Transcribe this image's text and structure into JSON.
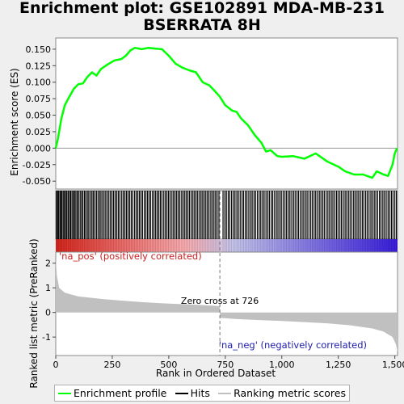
{
  "title_line1": "Enrichment plot: GSE102891 MDA-MB-231",
  "title_line2": "BSERRATA 8H",
  "chart_data": {
    "type": "line",
    "es_panel": {
      "ylabel": "Enrichment score (ES)",
      "ylim": [
        -0.062,
        0.167
      ],
      "yticks": [
        -0.05,
        -0.025,
        0.0,
        0.025,
        0.05,
        0.075,
        0.1,
        0.125,
        0.15
      ],
      "ytick_labels": [
        "-0.050",
        "-0.025",
        "0.000",
        "0.025",
        "0.050",
        "0.075",
        "0.100",
        "0.125",
        "0.150"
      ],
      "series_color": "#00ff00",
      "points": [
        [
          0,
          0.0
        ],
        [
          10,
          0.015
        ],
        [
          25,
          0.045
        ],
        [
          40,
          0.065
        ],
        [
          60,
          0.078
        ],
        [
          80,
          0.09
        ],
        [
          100,
          0.097
        ],
        [
          120,
          0.098
        ],
        [
          140,
          0.108
        ],
        [
          160,
          0.115
        ],
        [
          180,
          0.11
        ],
        [
          200,
          0.12
        ],
        [
          230,
          0.127
        ],
        [
          260,
          0.133
        ],
        [
          290,
          0.135
        ],
        [
          310,
          0.14
        ],
        [
          330,
          0.148
        ],
        [
          350,
          0.152
        ],
        [
          380,
          0.15
        ],
        [
          410,
          0.152
        ],
        [
          440,
          0.151
        ],
        [
          470,
          0.15
        ],
        [
          500,
          0.14
        ],
        [
          530,
          0.128
        ],
        [
          560,
          0.122
        ],
        [
          590,
          0.118
        ],
        [
          620,
          0.115
        ],
        [
          650,
          0.1
        ],
        [
          680,
          0.095
        ],
        [
          700,
          0.088
        ],
        [
          726,
          0.078
        ],
        [
          750,
          0.065
        ],
        [
          780,
          0.057
        ],
        [
          800,
          0.055
        ],
        [
          820,
          0.045
        ],
        [
          850,
          0.035
        ],
        [
          880,
          0.02
        ],
        [
          910,
          0.008
        ],
        [
          930,
          -0.005
        ],
        [
          950,
          -0.003
        ],
        [
          980,
          -0.012
        ],
        [
          1000,
          -0.013
        ],
        [
          1050,
          -0.012
        ],
        [
          1100,
          -0.016
        ],
        [
          1150,
          -0.008
        ],
        [
          1200,
          -0.02
        ],
        [
          1250,
          -0.028
        ],
        [
          1280,
          -0.035
        ],
        [
          1320,
          -0.04
        ],
        [
          1360,
          -0.04
        ],
        [
          1400,
          -0.045
        ],
        [
          1420,
          -0.035
        ],
        [
          1450,
          -0.04
        ],
        [
          1470,
          -0.042
        ],
        [
          1490,
          -0.025
        ],
        [
          1500,
          -0.008
        ],
        [
          1510,
          0.0
        ]
      ]
    },
    "hits_panel": {
      "band_labels": [
        "'na_pos' (positively correlated)",
        "'na_neg' (negatively correlated)"
      ],
      "gradient_colors": [
        "#e0281e",
        "#ffb0b4",
        "#c8c8f0",
        "#3a1ee0"
      ],
      "hit_ranks": [
        3,
        8,
        12,
        18,
        22,
        27,
        33,
        38,
        44,
        49,
        55,
        61,
        66,
        72,
        78,
        83,
        89,
        95,
        101,
        108,
        114,
        120,
        127,
        133,
        140,
        146,
        153,
        160,
        166,
        173,
        180,
        187,
        194,
        200,
        207,
        214,
        221,
        228,
        235,
        242,
        249,
        256,
        263,
        270,
        277,
        284,
        292,
        299,
        306,
        313,
        320,
        327,
        334,
        341,
        349,
        356,
        363,
        370,
        377,
        384,
        392,
        399,
        406,
        413,
        420,
        428,
        435,
        442,
        449,
        456,
        463,
        470,
        478,
        485,
        492,
        499,
        506,
        514,
        521,
        528,
        535,
        542,
        549,
        557,
        564,
        571,
        578,
        585,
        592,
        600,
        607,
        614,
        621,
        628,
        636,
        643,
        650,
        657,
        664,
        671,
        678,
        686,
        693,
        700,
        707,
        714,
        722,
        740,
        748,
        755,
        763,
        770,
        778,
        786,
        793,
        801,
        808,
        816,
        824,
        831,
        839,
        846,
        854,
        862,
        869,
        877,
        884,
        892,
        900,
        907,
        915,
        922,
        930,
        938,
        945,
        953,
        960,
        968,
        976,
        983,
        991,
        998,
        1006,
        1014,
        1021,
        1029,
        1036,
        1044,
        1052,
        1059,
        1067,
        1074,
        1082,
        1090,
        1097,
        1105,
        1112,
        1120,
        1128,
        1135,
        1143,
        1150,
        1158,
        1166,
        1173,
        1181,
        1188,
        1196,
        1204,
        1211,
        1219,
        1226,
        1234,
        1242,
        1249,
        1257,
        1264,
        1272,
        1280,
        1287,
        1295,
        1302,
        1310,
        1318,
        1325,
        1333,
        1340,
        1348,
        1356,
        1363,
        1371,
        1378,
        1386,
        1394,
        1401,
        1409,
        1416,
        1424,
        1432,
        1439,
        1447,
        1454,
        1462,
        1470,
        1477,
        1485,
        1492,
        1500,
        1507
      ]
    },
    "metric_panel": {
      "ylabel": "Ranked list metric (PreRanked)",
      "ylim": [
        -1.75,
        2.45
      ],
      "yticks": [
        -1,
        0,
        1,
        2
      ],
      "ytick_labels": [
        "-1",
        "0",
        "1",
        "2"
      ],
      "fill_color": "#c0c0c0",
      "zero_cross_rank": 726,
      "zero_cross_label": "Zero cross at 726",
      "profile": [
        [
          0,
          2.2
        ],
        [
          5,
          1.5
        ],
        [
          15,
          1.0
        ],
        [
          40,
          0.8
        ],
        [
          100,
          0.65
        ],
        [
          200,
          0.55
        ],
        [
          300,
          0.47
        ],
        [
          400,
          0.41
        ],
        [
          500,
          0.36
        ],
        [
          600,
          0.32
        ],
        [
          700,
          0.27
        ],
        [
          725,
          0.25
        ],
        [
          727,
          -0.22
        ],
        [
          800,
          -0.27
        ],
        [
          900,
          -0.31
        ],
        [
          1000,
          -0.35
        ],
        [
          1100,
          -0.39
        ],
        [
          1200,
          -0.44
        ],
        [
          1300,
          -0.52
        ],
        [
          1400,
          -0.65
        ],
        [
          1450,
          -0.78
        ],
        [
          1490,
          -1.0
        ],
        [
          1505,
          -1.3
        ],
        [
          1512,
          -1.6
        ]
      ]
    },
    "xaxis": {
      "label": "Rank in Ordered Dataset",
      "xlim": [
        0,
        1512
      ],
      "ticks": [
        0,
        250,
        500,
        750,
        1000,
        1250,
        1500
      ],
      "tick_labels": [
        "0",
        "250",
        "500",
        "750",
        "1,000",
        "1,250",
        "1,500"
      ]
    }
  },
  "legend": {
    "items": [
      {
        "label": "Enrichment profile",
        "color": "#00ff00"
      },
      {
        "label": "Hits",
        "color": "#000000"
      },
      {
        "label": "Ranking metric scores",
        "color": "#c0c0c0"
      }
    ]
  }
}
